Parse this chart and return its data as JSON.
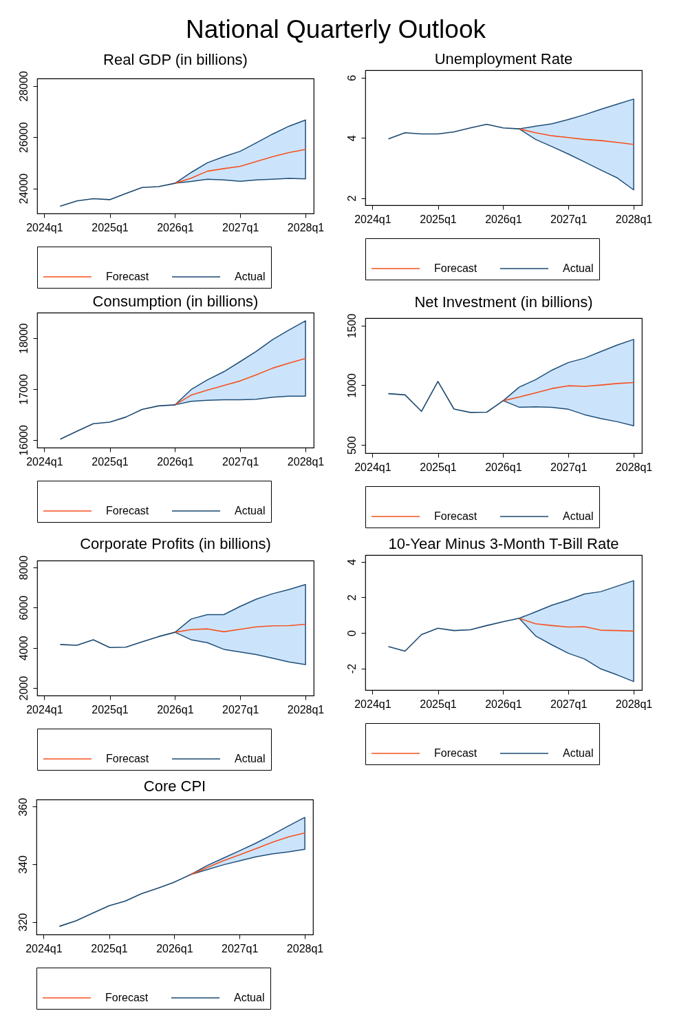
{
  "chart_data": [
    {
      "type": "other",
      "title": "National Quarterly Outlook"
    },
    {
      "type": "line",
      "title": "Real GDP (in billions)",
      "x": [
        "2024-04",
        "2024-07",
        "2024-10",
        "2025-01",
        "2025-04",
        "2025-07",
        "2025-10",
        "2026-01",
        "2026-04",
        "2026-07",
        "2026-10",
        "2027-01",
        "2027-04",
        "2027-07",
        "2027-10",
        "2028-01"
      ],
      "xlim": [
        "2023-11-22",
        "2028-02-16"
      ],
      "xticks": [
        {
          "value": "2024-01",
          "label": "2024q1"
        },
        {
          "value": "2025-01",
          "label": "2025q1"
        },
        {
          "value": "2026-01",
          "label": "2026q1"
        },
        {
          "value": "2027-01",
          "label": "2027q1"
        },
        {
          "value": "2028-01",
          "label": "2028q1"
        }
      ],
      "ylim": [
        23020,
        28290
      ],
      "yticks": [
        24000,
        26000,
        28000
      ],
      "legend": "bottom",
      "series": [
        {
          "name": "Forecast",
          "color": "#f4511e",
          "values": [
            null,
            null,
            null,
            null,
            null,
            null,
            null,
            24200,
            24400,
            24670,
            24770,
            24860,
            25050,
            25240,
            25400,
            25520
          ],
          "lower": [
            null,
            null,
            null,
            null,
            null,
            null,
            null,
            24200,
            24270,
            24360,
            24330,
            24280,
            24330,
            24360,
            24390,
            24370
          ],
          "upper": [
            null,
            null,
            null,
            null,
            null,
            null,
            null,
            24200,
            24620,
            25000,
            25240,
            25450,
            25780,
            26120,
            26430,
            26670
          ]
        },
        {
          "name": "Actual",
          "color": "#1a476f",
          "values": [
            23310,
            23510,
            23600,
            23560,
            23800,
            24035,
            24070,
            24200,
            null,
            null,
            null,
            null,
            null,
            null,
            null,
            null
          ]
        }
      ]
    },
    {
      "type": "line",
      "title": "Unemployment Rate",
      "x": [
        "2024-04",
        "2024-07",
        "2024-10",
        "2025-01",
        "2025-04",
        "2025-07",
        "2025-10",
        "2026-01",
        "2026-04",
        "2026-07",
        "2026-10",
        "2027-01",
        "2027-04",
        "2027-07",
        "2027-10",
        "2028-01"
      ],
      "xlim": [
        "2023-11-22",
        "2028-02-16"
      ],
      "xticks": [
        {
          "value": "2024-01",
          "label": "2024q1"
        },
        {
          "value": "2025-01",
          "label": "2025q1"
        },
        {
          "value": "2026-01",
          "label": "2026q1"
        },
        {
          "value": "2027-01",
          "label": "2027q1"
        },
        {
          "value": "2028-01",
          "label": "2028q1"
        }
      ],
      "ylim": [
        1.76,
        6.25
      ],
      "yticks": [
        2,
        4,
        6
      ],
      "legend": "bottom",
      "series": [
        {
          "name": "Forecast",
          "color": "#f4511e",
          "values": [
            null,
            null,
            null,
            null,
            null,
            null,
            null,
            null,
            4.3,
            4.17,
            4.07,
            4.01,
            3.95,
            3.91,
            3.85,
            3.78
          ],
          "lower": [
            null,
            null,
            null,
            null,
            null,
            null,
            null,
            null,
            4.3,
            3.95,
            3.71,
            3.46,
            3.2,
            2.93,
            2.67,
            2.27
          ],
          "upper": [
            null,
            null,
            null,
            null,
            null,
            null,
            null,
            null,
            4.3,
            4.39,
            4.47,
            4.61,
            4.77,
            4.95,
            5.12,
            5.29
          ]
        },
        {
          "name": "Actual",
          "color": "#1a476f",
          "values": [
            3.97,
            4.17,
            4.13,
            4.13,
            4.2,
            4.33,
            4.45,
            4.33,
            4.3,
            null,
            null,
            null,
            null,
            null,
            null,
            null
          ]
        }
      ]
    },
    {
      "type": "line",
      "title": "Consumption (in billions)",
      "x": [
        "2024-04",
        "2024-07",
        "2024-10",
        "2025-01",
        "2025-04",
        "2025-07",
        "2025-10",
        "2026-01",
        "2026-04",
        "2026-07",
        "2026-10",
        "2027-01",
        "2027-04",
        "2027-07",
        "2027-10",
        "2028-01"
      ],
      "xlim": [
        "2023-11-22",
        "2028-02-16"
      ],
      "xticks": [
        {
          "value": "2024-01",
          "label": "2024q1"
        },
        {
          "value": "2025-01",
          "label": "2025q1"
        },
        {
          "value": "2026-01",
          "label": "2026q1"
        },
        {
          "value": "2027-01",
          "label": "2027q1"
        },
        {
          "value": "2028-01",
          "label": "2028q1"
        }
      ],
      "ylim": [
        15850,
        18500
      ],
      "yticks": [
        16000,
        17000,
        18000
      ],
      "legend": "bottom",
      "series": [
        {
          "name": "Forecast",
          "color": "#f4511e",
          "values": [
            null,
            null,
            null,
            null,
            null,
            null,
            null,
            16690,
            16880,
            16980,
            17070,
            17160,
            17280,
            17410,
            17510,
            17600
          ],
          "lower": [
            null,
            null,
            null,
            null,
            null,
            null,
            null,
            16690,
            16760,
            16780,
            16790,
            16790,
            16800,
            16840,
            16860,
            16860
          ],
          "upper": [
            null,
            null,
            null,
            null,
            null,
            null,
            null,
            16690,
            16990,
            17180,
            17340,
            17540,
            17740,
            17970,
            18160,
            18340
          ]
        },
        {
          "name": "Actual",
          "color": "#1a476f",
          "values": [
            16020,
            16170,
            16320,
            16350,
            16450,
            16600,
            16670,
            16690,
            null,
            null,
            null,
            null,
            null,
            null,
            null,
            null
          ]
        }
      ]
    },
    {
      "type": "line",
      "title": "Net Investment (in billions)",
      "x": [
        "2024-04",
        "2024-07",
        "2024-10",
        "2025-01",
        "2025-04",
        "2025-07",
        "2025-10",
        "2026-01",
        "2026-04",
        "2026-07",
        "2026-10",
        "2027-01",
        "2027-04",
        "2027-07",
        "2027-10",
        "2028-01"
      ],
      "xlim": [
        "2023-11-22",
        "2028-02-16"
      ],
      "xticks": [
        {
          "value": "2024-01",
          "label": "2024q1"
        },
        {
          "value": "2025-01",
          "label": "2025q1"
        },
        {
          "value": "2026-01",
          "label": "2026q1"
        },
        {
          "value": "2027-01",
          "label": "2027q1"
        },
        {
          "value": "2028-01",
          "label": "2028q1"
        }
      ],
      "ylim": [
        432,
        1562
      ],
      "yticks": [
        500,
        1000,
        1500
      ],
      "legend": "bottom",
      "series": [
        {
          "name": "Forecast",
          "color": "#f4511e",
          "values": [
            null,
            null,
            null,
            null,
            null,
            null,
            null,
            871,
            902,
            936,
            973,
            996,
            991,
            1002,
            1015,
            1023
          ],
          "lower": [
            null,
            null,
            null,
            null,
            null,
            null,
            null,
            871,
            816,
            820,
            816,
            799,
            754,
            722,
            695,
            661
          ],
          "upper": [
            null,
            null,
            null,
            null,
            null,
            null,
            null,
            871,
            985,
            1047,
            1127,
            1191,
            1227,
            1282,
            1337,
            1384
          ]
        },
        {
          "name": "Actual",
          "color": "#1a476f",
          "values": [
            930,
            920,
            782,
            1032,
            801,
            773,
            775,
            871,
            null,
            null,
            null,
            null,
            null,
            null,
            null,
            null
          ]
        }
      ]
    },
    {
      "type": "line",
      "title": "Corporate Profits (in billions)",
      "x": [
        "2024-04",
        "2024-07",
        "2024-10",
        "2025-01",
        "2025-04",
        "2025-07",
        "2025-10",
        "2026-01",
        "2026-04",
        "2026-07",
        "2026-10",
        "2027-01",
        "2027-04",
        "2027-07",
        "2027-10",
        "2028-01"
      ],
      "xlim": [
        "2023-11-22",
        "2028-02-16"
      ],
      "xticks": [
        {
          "value": "2024-01",
          "label": "2024q1"
        },
        {
          "value": "2025-01",
          "label": "2025q1"
        },
        {
          "value": "2026-01",
          "label": "2026q1"
        },
        {
          "value": "2027-01",
          "label": "2027q1"
        },
        {
          "value": "2028-01",
          "label": "2028q1"
        }
      ],
      "ylim": [
        1620,
        8340
      ],
      "yticks": [
        2000,
        4000,
        6000,
        8000
      ],
      "legend": "bottom",
      "series": [
        {
          "name": "Forecast",
          "color": "#f4511e",
          "values": [
            null,
            null,
            null,
            null,
            null,
            null,
            null,
            4770,
            4905,
            4940,
            4795,
            4920,
            5040,
            5090,
            5100,
            5170
          ],
          "lower": [
            null,
            null,
            null,
            null,
            null,
            null,
            null,
            4770,
            4400,
            4250,
            3920,
            3785,
            3660,
            3480,
            3290,
            3160
          ],
          "upper": [
            null,
            null,
            null,
            null,
            null,
            null,
            null,
            4770,
            5430,
            5650,
            5650,
            6060,
            6420,
            6690,
            6900,
            7150
          ]
        },
        {
          "name": "Actual",
          "color": "#1a476f",
          "values": [
            4160,
            4125,
            4400,
            4010,
            4030,
            4295,
            4555,
            4770,
            null,
            null,
            null,
            null,
            null,
            null,
            null,
            null
          ]
        }
      ]
    },
    {
      "type": "line",
      "title": "10-Year Minus 3-Month T-Bill Rate",
      "x": [
        "2024-04",
        "2024-07",
        "2024-10",
        "2025-01",
        "2025-04",
        "2025-07",
        "2025-10",
        "2026-01",
        "2026-04",
        "2026-07",
        "2026-10",
        "2027-01",
        "2027-04",
        "2027-07",
        "2027-10",
        "2028-01"
      ],
      "xlim": [
        "2023-11-22",
        "2028-02-16"
      ],
      "xticks": [
        {
          "value": "2024-01",
          "label": "2024q1"
        },
        {
          "value": "2025-01",
          "label": "2025q1"
        },
        {
          "value": "2026-01",
          "label": "2026q1"
        },
        {
          "value": "2027-01",
          "label": "2027q1"
        },
        {
          "value": "2028-01",
          "label": "2028q1"
        }
      ],
      "ylim": [
        -3.22,
        4.38
      ],
      "yticks": [
        -2,
        0,
        2,
        4
      ],
      "legend": "bottom",
      "series": [
        {
          "name": "Forecast",
          "color": "#f4511e",
          "values": [
            null,
            null,
            null,
            null,
            null,
            null,
            null,
            null,
            0.82,
            0.51,
            0.41,
            0.33,
            0.35,
            0.15,
            0.13,
            0.1
          ],
          "lower": [
            null,
            null,
            null,
            null,
            null,
            null,
            null,
            null,
            0.82,
            -0.17,
            -0.68,
            -1.15,
            -1.47,
            -2.03,
            -2.37,
            -2.74
          ],
          "upper": [
            null,
            null,
            null,
            null,
            null,
            null,
            null,
            null,
            0.82,
            1.18,
            1.56,
            1.85,
            2.19,
            2.32,
            2.63,
            2.94
          ]
        },
        {
          "name": "Actual",
          "color": "#1a476f",
          "values": [
            -0.78,
            -1.03,
            -0.1,
            0.26,
            0.13,
            0.17,
            0.41,
            0.63,
            0.82,
            null,
            null,
            null,
            null,
            null,
            null,
            null
          ]
        }
      ]
    },
    {
      "type": "line",
      "title": "Core CPI",
      "x": [
        "2024-04",
        "2024-07",
        "2024-10",
        "2025-01",
        "2025-04",
        "2025-07",
        "2025-10",
        "2026-01",
        "2026-04",
        "2026-07",
        "2026-10",
        "2027-01",
        "2027-04",
        "2027-07",
        "2027-10",
        "2028-01"
      ],
      "xlim": [
        "2023-11-22",
        "2028-02-16"
      ],
      "xticks": [
        {
          "value": "2024-01",
          "label": "2024q1"
        },
        {
          "value": "2025-01",
          "label": "2025q1"
        },
        {
          "value": "2026-01",
          "label": "2026q1"
        },
        {
          "value": "2027-01",
          "label": "2027q1"
        },
        {
          "value": "2028-01",
          "label": "2028q1"
        }
      ],
      "ylim": [
        315.6,
        362.5
      ],
      "yticks": [
        320,
        340,
        360
      ],
      "legend": "bottom",
      "series": [
        {
          "name": "Forecast",
          "color": "#f4511e",
          "values": [
            null,
            null,
            null,
            null,
            null,
            null,
            null,
            null,
            336.4,
            338.8,
            341.2,
            343.3,
            345.4,
            347.6,
            349.5,
            350.9
          ],
          "lower": [
            null,
            null,
            null,
            null,
            null,
            null,
            null,
            null,
            336.4,
            338.1,
            339.8,
            341.2,
            342.6,
            343.6,
            344.3,
            345.2
          ],
          "upper": [
            null,
            null,
            null,
            null,
            null,
            null,
            null,
            null,
            336.4,
            339.5,
            342.1,
            344.7,
            347.3,
            350.2,
            353.3,
            356.3
          ]
        },
        {
          "name": "Actual",
          "color": "#1a476f",
          "values": [
            318.5,
            320.4,
            323.0,
            325.6,
            327.2,
            329.8,
            331.7,
            333.8,
            336.4,
            null,
            null,
            null,
            null,
            null,
            null,
            null
          ]
        }
      ]
    }
  ]
}
